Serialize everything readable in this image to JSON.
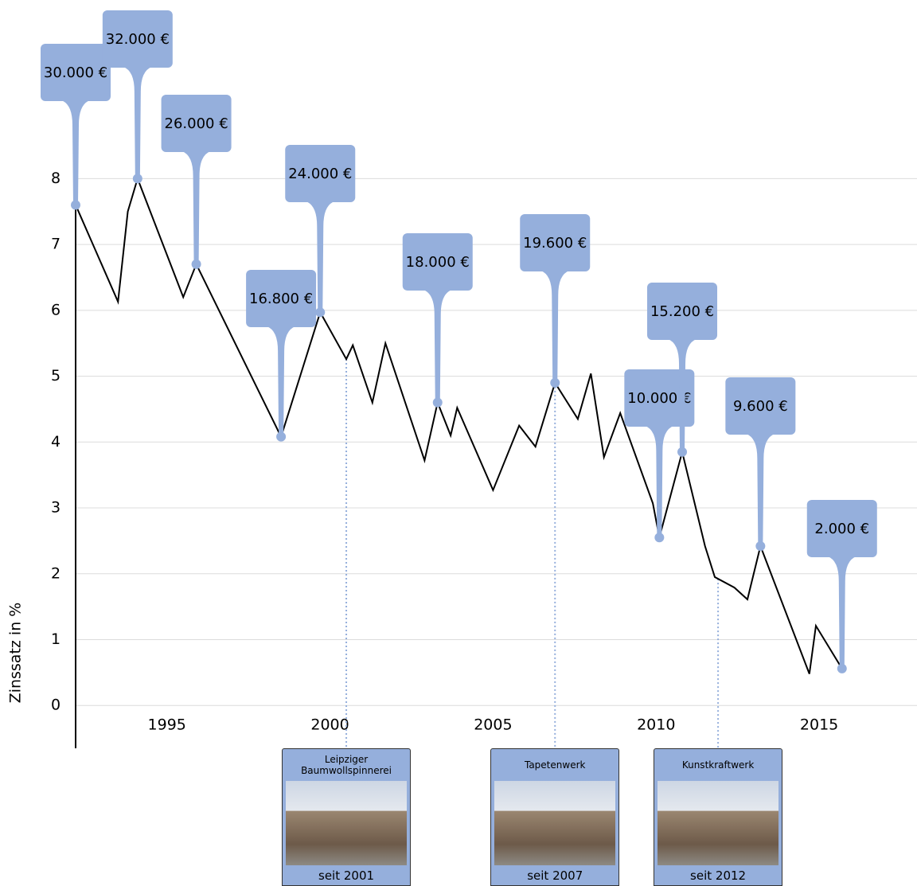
{
  "chart_data": {
    "type": "line",
    "y_label": "Zinssatz in %",
    "x": [
      1992.2,
      1993.5,
      1993.8,
      1994.1,
      1995.5,
      1995.9,
      1998.5,
      1999.7,
      2000.5,
      2000.7,
      2001.3,
      2001.7,
      2002.9,
      2003.3,
      2003.7,
      2003.9,
      2005.0,
      2005.8,
      2006.3,
      2006.9,
      2007.6,
      2008.0,
      2008.4,
      2008.9,
      2009.9,
      2010.1,
      2010.8,
      2011.5,
      2011.8,
      2012.4,
      2012.8,
      2013.2,
      2014.7,
      2014.9,
      2015.7
    ],
    "values": [
      7.6,
      6.13,
      7.5,
      8.0,
      6.2,
      6.7,
      4.08,
      5.97,
      5.26,
      5.47,
      4.6,
      5.5,
      3.72,
      4.6,
      4.1,
      4.52,
      3.27,
      4.25,
      3.93,
      4.9,
      4.35,
      5.04,
      3.77,
      4.44,
      3.07,
      2.55,
      3.85,
      2.42,
      1.95,
      1.79,
      1.61,
      2.42,
      0.48,
      1.21,
      0.56
    ],
    "color": "#000000",
    "xlim": [
      1992.2,
      2018
    ],
    "ylim": [
      -0.65,
      8.5
    ],
    "xticks": [
      1995,
      2000,
      2005,
      2010,
      2015
    ],
    "yticks": [
      0,
      1,
      2,
      3,
      4,
      5,
      6,
      7,
      8
    ],
    "grid": true,
    "pin_color": "#95afdc",
    "pins": [
      {
        "x": 1992.2,
        "y": 7.6,
        "label": "30.000 €"
      },
      {
        "x": 1994.1,
        "y": 8.0,
        "label": "32.000 €"
      },
      {
        "x": 1995.9,
        "y": 6.7,
        "label": "26.000 €"
      },
      {
        "x": 1998.5,
        "y": 4.08,
        "label": "16.800 €"
      },
      {
        "x": 1999.7,
        "y": 5.97,
        "label": "24.000 €"
      },
      {
        "x": 2003.3,
        "y": 4.6,
        "label": "18.000 €"
      },
      {
        "x": 2006.9,
        "y": 4.9,
        "label": "19.600 €"
      },
      {
        "x": 2010.1,
        "y": 2.55,
        "label": "10.000 €"
      },
      {
        "x": 2010.8,
        "y": 3.85,
        "label": "15.200 €"
      },
      {
        "x": 2013.2,
        "y": 2.42,
        "label": "9.600 €"
      },
      {
        "x": 2015.7,
        "y": 0.56,
        "label": "2.000 €"
      }
    ],
    "cards": [
      {
        "x": 2000.5,
        "title": "Leipziger Baumwollspinnerei",
        "since": "seit 2001"
      },
      {
        "x": 2006.9,
        "title": "Tapetenwerk",
        "since": "seit 2007"
      },
      {
        "x": 2011.9,
        "title": "Kunstkraftwerk",
        "since": "seit 2012"
      }
    ]
  }
}
